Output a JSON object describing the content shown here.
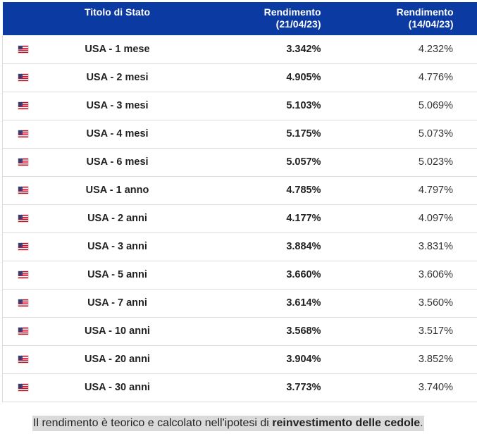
{
  "table": {
    "headers": {
      "name": "Titolo di Stato",
      "yield1_line1": "Rendimento",
      "yield1_line2": "(21/04/23)",
      "yield2_line1": "Rendimento",
      "yield2_line2": "(14/04/23)"
    },
    "flag_icon": "us-flag-icon",
    "colors": {
      "header_bg": "#0c3aa3",
      "header_text": "#ffffff",
      "row_border": "#dcdcdc"
    },
    "rows": [
      {
        "name": "USA - 1 mese",
        "y1": "3.342%",
        "y2": "4.232%"
      },
      {
        "name": "USA - 2 mesi",
        "y1": "4.905%",
        "y2": "4.776%"
      },
      {
        "name": "USA - 3 mesi",
        "y1": "5.103%",
        "y2": "5.069%"
      },
      {
        "name": "USA - 4 mesi",
        "y1": "5.175%",
        "y2": "5.073%"
      },
      {
        "name": "USA - 6 mesi",
        "y1": "5.057%",
        "y2": "5.023%"
      },
      {
        "name": "USA - 1 anno",
        "y1": "4.785%",
        "y2": "4.797%"
      },
      {
        "name": "USA - 2 anni",
        "y1": "4.177%",
        "y2": "4.097%"
      },
      {
        "name": "USA - 3 anni",
        "y1": "3.884%",
        "y2": "3.831%"
      },
      {
        "name": "USA - 5 anni",
        "y1": "3.660%",
        "y2": "3.606%"
      },
      {
        "name": "USA - 7 anni",
        "y1": "3.614%",
        "y2": "3.560%"
      },
      {
        "name": "USA - 10 anni",
        "y1": "3.568%",
        "y2": "3.517%"
      },
      {
        "name": "USA - 20 anni",
        "y1": "3.904%",
        "y2": "3.852%"
      },
      {
        "name": "USA - 30 anni",
        "y1": "3.773%",
        "y2": "3.740%"
      }
    ]
  },
  "note": {
    "text_before": "Il rendimento è teorico e calcolato nell'ipotesi di ",
    "text_bold": "reinvestimento delle cedole",
    "text_after": "."
  }
}
